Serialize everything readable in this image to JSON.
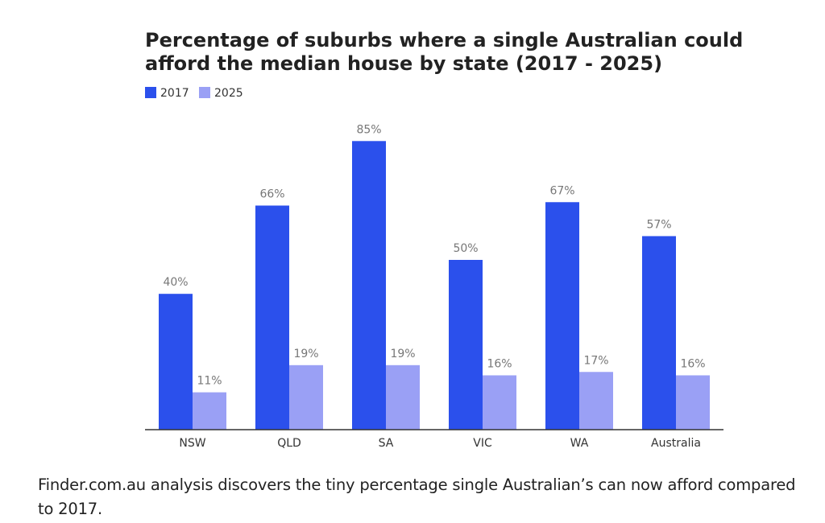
{
  "chart_data": {
    "type": "bar",
    "title_lines": [
      "Percentage of suburbs where a single Australian could",
      "afford the median house by state (2017 - 2025)"
    ],
    "categories": [
      "NSW",
      "QLD",
      "SA",
      "VIC",
      "WA",
      "Australia"
    ],
    "series": [
      {
        "name": "2017",
        "color": "#2b50ec",
        "values": [
          40,
          66,
          85,
          50,
          67,
          57
        ],
        "labels": [
          "40%",
          "66%",
          "85%",
          "50%",
          "67%",
          "57%"
        ]
      },
      {
        "name": "2025",
        "color": "#9aa0f5",
        "values": [
          11,
          19,
          19,
          16,
          17,
          16
        ],
        "labels": [
          "11%",
          "19%",
          "19%",
          "16%",
          "17%",
          "16%"
        ]
      }
    ],
    "ylim": [
      0,
      100
    ],
    "grid": false,
    "legend_position": "top-left",
    "label_color": "#777777",
    "axis_color": "#333333",
    "title_color": "#222222"
  },
  "caption": "Finder.com.au analysis discovers the tiny percentage single Australian’s can now afford compared to 2017."
}
